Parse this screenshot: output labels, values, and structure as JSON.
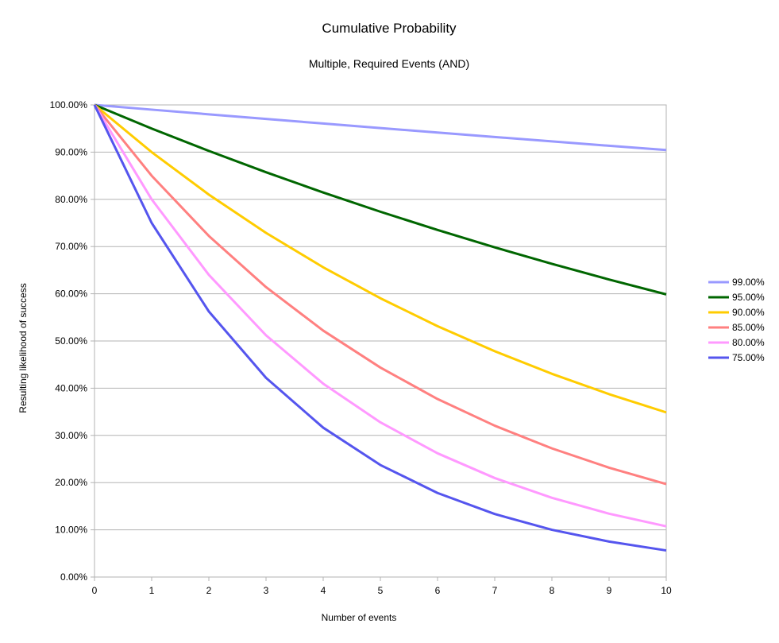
{
  "chart_data": {
    "type": "line",
    "title": "Cumulative Probability",
    "subtitle": "Multiple, Required Events (AND)",
    "xlabel": "Number of events",
    "ylabel": "Resulting likelihood of success",
    "x": [
      0,
      1,
      2,
      3,
      4,
      5,
      6,
      7,
      8,
      9,
      10
    ],
    "xlim": [
      0,
      10
    ],
    "ylim": [
      0,
      1
    ],
    "y_ticks": [
      0,
      0.1,
      0.2,
      0.3,
      0.4,
      0.5,
      0.6,
      0.7,
      0.8,
      0.9,
      1.0
    ],
    "y_tick_labels": [
      "0.00%",
      "10.00%",
      "20.00%",
      "30.00%",
      "40.00%",
      "50.00%",
      "60.00%",
      "70.00%",
      "80.00%",
      "90.00%",
      "100.00%"
    ],
    "x_tick_labels": [
      "0",
      "1",
      "2",
      "3",
      "4",
      "5",
      "6",
      "7",
      "8",
      "9",
      "10"
    ],
    "grid": true,
    "legend_position": "right",
    "series": [
      {
        "name": "99.00%",
        "color": "#9999ff",
        "values": [
          1.0,
          0.99,
          0.9801,
          0.9703,
          0.9606,
          0.951,
          0.9415,
          0.9321,
          0.9227,
          0.9135,
          0.9044
        ]
      },
      {
        "name": "95.00%",
        "color": "#006600",
        "values": [
          1.0,
          0.95,
          0.9025,
          0.8574,
          0.8145,
          0.7738,
          0.7351,
          0.6983,
          0.6634,
          0.6302,
          0.5987
        ]
      },
      {
        "name": "90.00%",
        "color": "#ffcc00",
        "values": [
          1.0,
          0.9,
          0.81,
          0.729,
          0.6561,
          0.5905,
          0.5314,
          0.4783,
          0.4305,
          0.3874,
          0.3487
        ]
      },
      {
        "name": "85.00%",
        "color": "#ff8080",
        "values": [
          1.0,
          0.85,
          0.7225,
          0.6141,
          0.522,
          0.4437,
          0.3771,
          0.3206,
          0.2725,
          0.2316,
          0.1969
        ]
      },
      {
        "name": "80.00%",
        "color": "#ff99ff",
        "values": [
          1.0,
          0.8,
          0.64,
          0.512,
          0.4096,
          0.3277,
          0.2621,
          0.2097,
          0.1678,
          0.1342,
          0.1074
        ]
      },
      {
        "name": "75.00%",
        "color": "#5555ee",
        "values": [
          1.0,
          0.75,
          0.5625,
          0.4219,
          0.3164,
          0.2373,
          0.178,
          0.1335,
          0.1001,
          0.0751,
          0.0563
        ]
      }
    ]
  }
}
